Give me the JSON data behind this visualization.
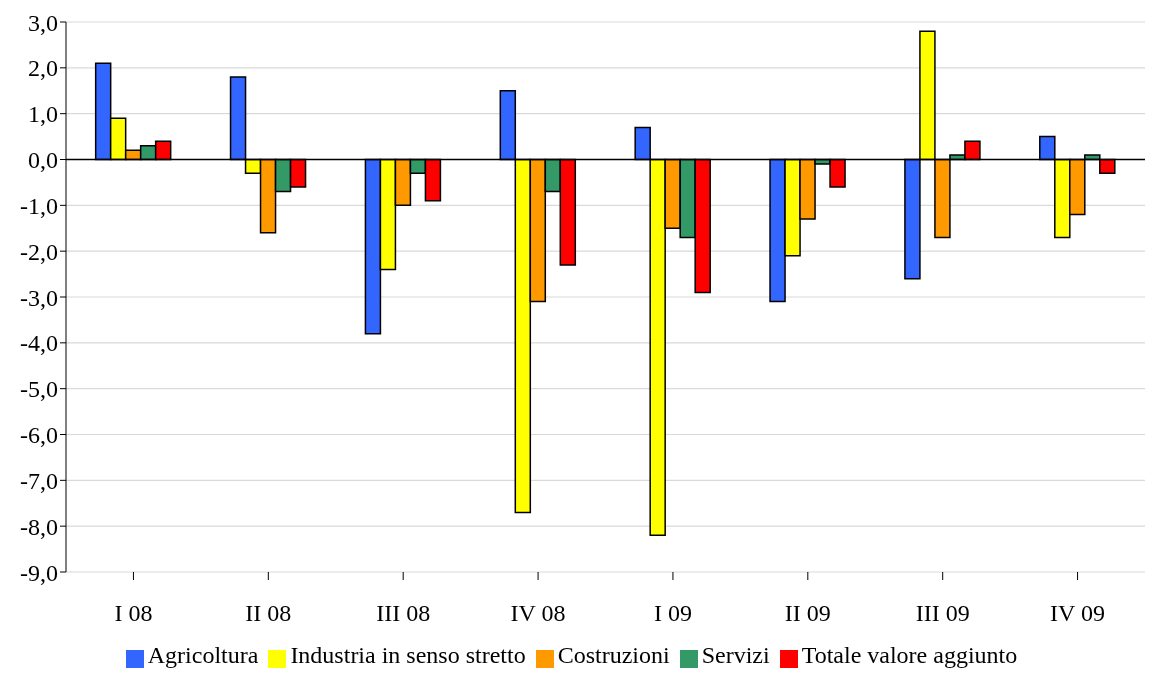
{
  "chart_data": {
    "type": "bar",
    "categories": [
      "I 08",
      "II 08",
      "III 08",
      "IV 08",
      "I 09",
      "II 09",
      "III 09",
      "IV 09"
    ],
    "series": [
      {
        "name": "Agricoltura",
        "color": "#3366ff",
        "values": [
          2.1,
          1.8,
          -3.8,
          1.5,
          0.7,
          -3.1,
          -2.6,
          0.5
        ]
      },
      {
        "name": "Industria in senso stretto",
        "color": "#ffff00",
        "values": [
          0.9,
          -0.3,
          -2.4,
          -7.7,
          -8.2,
          -2.1,
          2.8,
          -1.7
        ]
      },
      {
        "name": "Costruzioni",
        "color": "#ff9900",
        "values": [
          0.2,
          -1.6,
          -1.0,
          -3.1,
          -1.5,
          -1.3,
          -1.7,
          -1.2
        ]
      },
      {
        "name": "Servizi",
        "color": "#339966",
        "values": [
          0.3,
          -0.7,
          -0.3,
          -0.7,
          -1.7,
          -0.1,
          0.1,
          0.1
        ]
      },
      {
        "name": "Totale valore aggiunto",
        "color": "#ff0000",
        "values": [
          0.4,
          -0.6,
          -0.9,
          -2.3,
          -2.9,
          -0.6,
          0.4,
          -0.3
        ]
      }
    ],
    "ylim": [
      -9,
      3
    ],
    "yticks": [
      {
        "value": -9,
        "label": "-9,0"
      },
      {
        "value": -8,
        "label": "-8,0"
      },
      {
        "value": -7,
        "label": "-7,0"
      },
      {
        "value": -6,
        "label": "-6,0"
      },
      {
        "value": -5,
        "label": "-5,0"
      },
      {
        "value": -4,
        "label": "-4,0"
      },
      {
        "value": -3,
        "label": "-3,0"
      },
      {
        "value": -2,
        "label": "-2,0"
      },
      {
        "value": -1,
        "label": "-1,0"
      },
      {
        "value": 0,
        "label": "0,0"
      },
      {
        "value": 1,
        "label": "1,0"
      },
      {
        "value": 2,
        "label": "2,0"
      },
      {
        "value": 3,
        "label": "3,0"
      }
    ],
    "grid": "y",
    "legend": "bottom"
  }
}
